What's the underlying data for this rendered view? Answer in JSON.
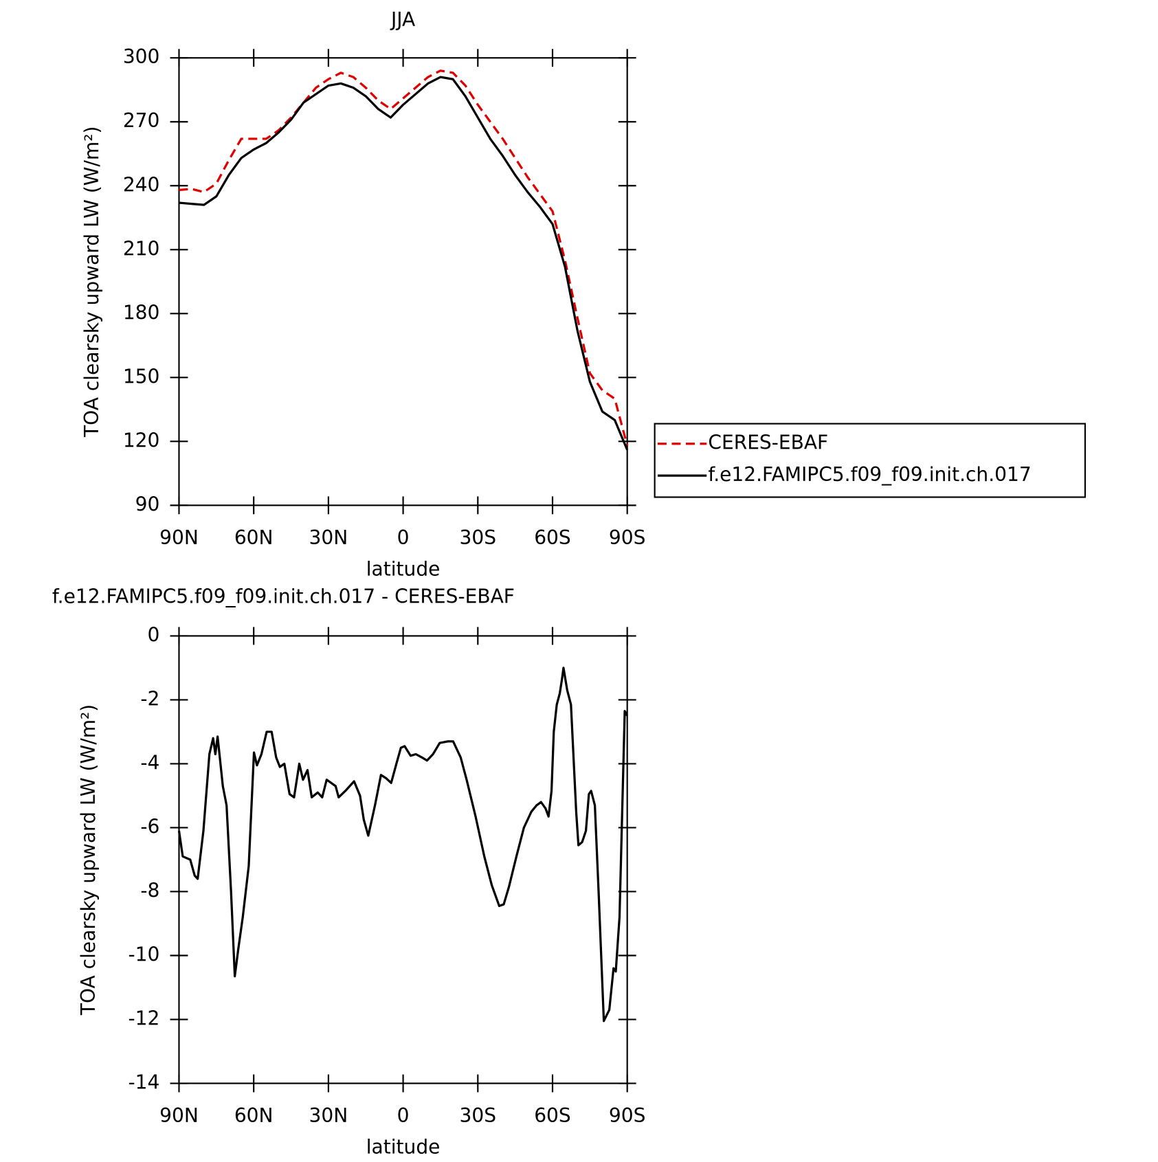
{
  "chart_data": [
    {
      "type": "line",
      "title": "JJA",
      "xlabel": "latitude",
      "ylabel": "TOA clearsky upward LW (W/m²)",
      "x": [
        90,
        85,
        80,
        75,
        70,
        65,
        60,
        55,
        50,
        45,
        40,
        35,
        30,
        25,
        20,
        15,
        10,
        5,
        0,
        -5,
        -10,
        -15,
        -20,
        -25,
        -30,
        -35,
        -40,
        -45,
        -50,
        -55,
        -60,
        -65,
        -70,
        -75,
        -80,
        -85,
        -90
      ],
      "series": [
        {
          "name": "CERES-EBAF",
          "color": "#e00000",
          "dashed": true,
          "values": [
            238,
            238.5,
            237,
            241,
            252,
            262,
            262,
            262,
            266,
            272,
            279,
            286,
            290,
            293,
            291,
            286,
            280,
            276,
            281,
            286,
            291,
            294,
            293,
            287,
            278,
            270,
            262,
            253,
            244,
            236,
            228,
            205,
            178,
            152,
            144,
            140,
            118
          ]
        },
        {
          "name": "f.e12.FAMIPC5.f09_f09.init.ch.017",
          "color": "#000000",
          "dashed": false,
          "values": [
            232,
            231.5,
            231,
            235,
            245,
            253,
            257,
            260,
            265,
            271,
            279,
            283,
            287,
            288,
            286,
            282,
            276,
            272,
            278,
            283,
            288,
            291,
            290,
            282,
            272,
            262,
            254,
            245,
            237,
            230,
            222,
            202,
            172,
            148,
            134,
            130,
            116
          ]
        }
      ],
      "xlim": [
        90,
        -90
      ],
      "xticks": [
        {
          "value": 90,
          "label": "90N"
        },
        {
          "value": 60,
          "label": "60N"
        },
        {
          "value": 30,
          "label": "30N"
        },
        0,
        {
          "value": -30,
          "label": "30S"
        },
        {
          "value": -60,
          "label": "60S"
        },
        {
          "value": -90,
          "label": "90S"
        }
      ],
      "ylim": [
        90,
        300
      ],
      "yticks": [
        90,
        120,
        150,
        180,
        210,
        240,
        270,
        300
      ],
      "legend": "right"
    },
    {
      "type": "line",
      "title": "f.e12.FAMIPC5.f09_f09.init.ch.017 - CERES-EBAF",
      "xlabel": "latitude",
      "ylabel": "TOA clearsky upward LW (W/m²)",
      "x": [
        90,
        88.5,
        85.5,
        83.7,
        82.5,
        80.2,
        77.8,
        76.3,
        75.4,
        74.5,
        72.4,
        70.9,
        69.1,
        67.6,
        66.2,
        64.4,
        62,
        59.9,
        58.7,
        56.9,
        54.8,
        52.8,
        51,
        49.5,
        47.7,
        45.6,
        43.8,
        41.7,
        40.2,
        38.4,
        36.7,
        34.3,
        32.5,
        30.7,
        28.9,
        27.1,
        25.9,
        23.2,
        19.7,
        17.3,
        15.8,
        14,
        11.3,
        8.9,
        6.9,
        4.8,
        2.7,
        0.9,
        -0.6,
        -3,
        -5.1,
        -7.5,
        -9.6,
        -12,
        -14.7,
        -18,
        -20.1,
        -23.1,
        -25.5,
        -29.1,
        -32.6,
        -35.6,
        -38.6,
        -40.4,
        -42.5,
        -45.5,
        -48.5,
        -51.5,
        -53.6,
        -55.4,
        -57.2,
        -58.4,
        -59.6,
        -60.5,
        -61.7,
        -62.9,
        -63.8,
        -64.4,
        -65.9,
        -67.4,
        -69.5,
        -70.4,
        -71.9,
        -73.4,
        -74.6,
        -75.5,
        -77,
        -78.5,
        -80.6,
        -82.8,
        -84.5,
        -85.4,
        -86.9,
        -89,
        -90
      ],
      "series": [
        {
          "color": "#000000",
          "dashed": false,
          "values": [
            -6.1,
            -6.9,
            -7.0,
            -7.5,
            -7.6,
            -6.1,
            -3.7,
            -3.2,
            -3.7,
            -3.15,
            -4.7,
            -5.3,
            -8.0,
            -10.65,
            -9.8,
            -8.8,
            -7.2,
            -3.65,
            -4.05,
            -3.7,
            -3.0,
            -3.0,
            -3.8,
            -4.1,
            -4.0,
            -4.95,
            -5.05,
            -4.0,
            -4.5,
            -4.2,
            -5.05,
            -4.9,
            -5.05,
            -4.5,
            -4.6,
            -4.7,
            -5.05,
            -4.85,
            -4.55,
            -5.0,
            -5.75,
            -6.25,
            -5.3,
            -4.35,
            -4.45,
            -4.6,
            -4.0,
            -3.5,
            -3.45,
            -3.75,
            -3.7,
            -3.8,
            -3.9,
            -3.7,
            -3.35,
            -3.3,
            -3.3,
            -3.8,
            -4.5,
            -5.65,
            -6.9,
            -7.8,
            -8.45,
            -8.4,
            -7.85,
            -6.9,
            -6.0,
            -5.5,
            -5.3,
            -5.2,
            -5.4,
            -5.65,
            -4.85,
            -3.0,
            -2.15,
            -1.8,
            -1.35,
            -1.0,
            -1.7,
            -2.15,
            -5.5,
            -6.55,
            -6.45,
            -6.1,
            -4.95,
            -4.85,
            -5.3,
            -8.0,
            -12.05,
            -11.7,
            -10.4,
            -10.5,
            -8.8,
            -2.35,
            -2.5
          ]
        }
      ],
      "xlim": [
        90,
        -90
      ],
      "xticks": [
        {
          "value": 90,
          "label": "90N"
        },
        {
          "value": 60,
          "label": "60N"
        },
        {
          "value": 30,
          "label": "30N"
        },
        0,
        {
          "value": -30,
          "label": "30S"
        },
        {
          "value": -60,
          "label": "60S"
        },
        {
          "value": -90,
          "label": "90S"
        }
      ],
      "ylim": [
        -14,
        0
      ],
      "yticks": [
        -14,
        -12,
        -10,
        -8,
        -6,
        -4,
        -2,
        0
      ]
    }
  ]
}
